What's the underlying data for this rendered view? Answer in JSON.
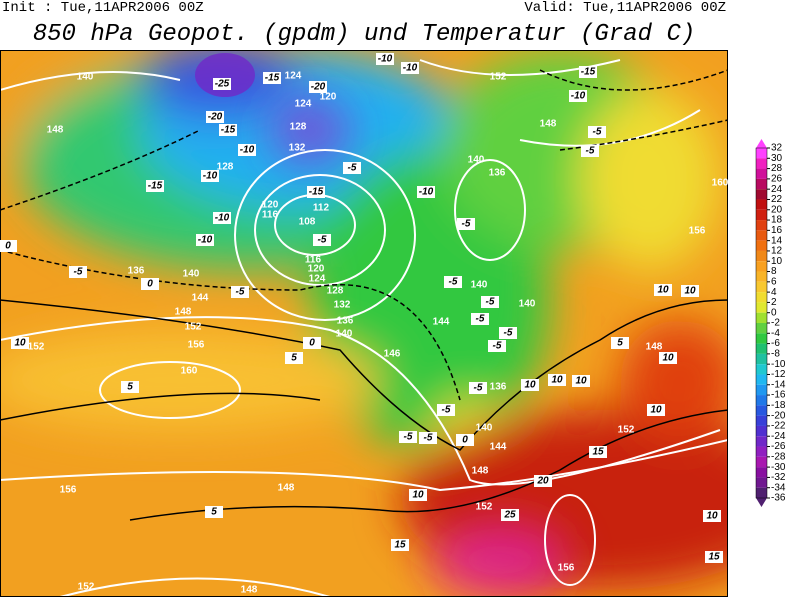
{
  "header": {
    "init": "Init : Tue,11APR2006 00Z",
    "valid": "Valid: Tue,11APR2006 00Z",
    "title": "850 hPa Geopot. (gpdm) und Temperatur (Grad C)"
  },
  "map": {
    "geopotential_labels": [
      140,
      148,
      152,
      148,
      140,
      136,
      128,
      132,
      128,
      124,
      120,
      124,
      120,
      116,
      112,
      108,
      116,
      120,
      124,
      128,
      132,
      136,
      140,
      136,
      140,
      144,
      148,
      152,
      156,
      152,
      160,
      144,
      146,
      140,
      140,
      136,
      140,
      144,
      148,
      152,
      156,
      148,
      152,
      148,
      156,
      152,
      148,
      156,
      160
    ],
    "temperature_labels": [
      -25,
      -20,
      -15,
      -10,
      -10,
      -15,
      -10,
      -10,
      -5,
      0,
      -5,
      -5,
      -15,
      -15,
      -20,
      -10,
      -10,
      -15,
      -10,
      -5,
      -5,
      -5,
      -10,
      -5,
      -5,
      -5,
      -5,
      -5,
      -5,
      -5,
      -5,
      -5,
      -5,
      0,
      5,
      0,
      5,
      10,
      5,
      10,
      15,
      20,
      25,
      15,
      10,
      10,
      10,
      10,
      10,
      5,
      10,
      10,
      15,
      10,
      0
    ]
  },
  "colorbar": {
    "ticks": [
      32,
      30,
      28,
      26,
      24,
      22,
      20,
      18,
      16,
      14,
      12,
      10,
      8,
      6,
      4,
      2,
      0,
      -2,
      -4,
      -6,
      -8,
      -10,
      -12,
      -14,
      -16,
      -18,
      -20,
      -22,
      -24,
      -26,
      -28,
      -30,
      -32,
      -34,
      -36
    ],
    "colors": [
      "#ff40ff",
      "#f020c0",
      "#d0109a",
      "#b80a60",
      "#a00a30",
      "#c01010",
      "#d02010",
      "#e04010",
      "#e85a10",
      "#f07010",
      "#f08818",
      "#f8a020",
      "#f8b428",
      "#f8c830",
      "#f0dc30",
      "#e0e830",
      "#a0e030",
      "#60d040",
      "#30c840",
      "#20c070",
      "#20c0a0",
      "#20c8d0",
      "#20b8f0",
      "#2098f0",
      "#2078e8",
      "#2858e0",
      "#3840d8",
      "#5030d0",
      "#7028c8",
      "#9020c0",
      "#a818b0",
      "#8810a0",
      "#701890",
      "#502070"
    ]
  }
}
